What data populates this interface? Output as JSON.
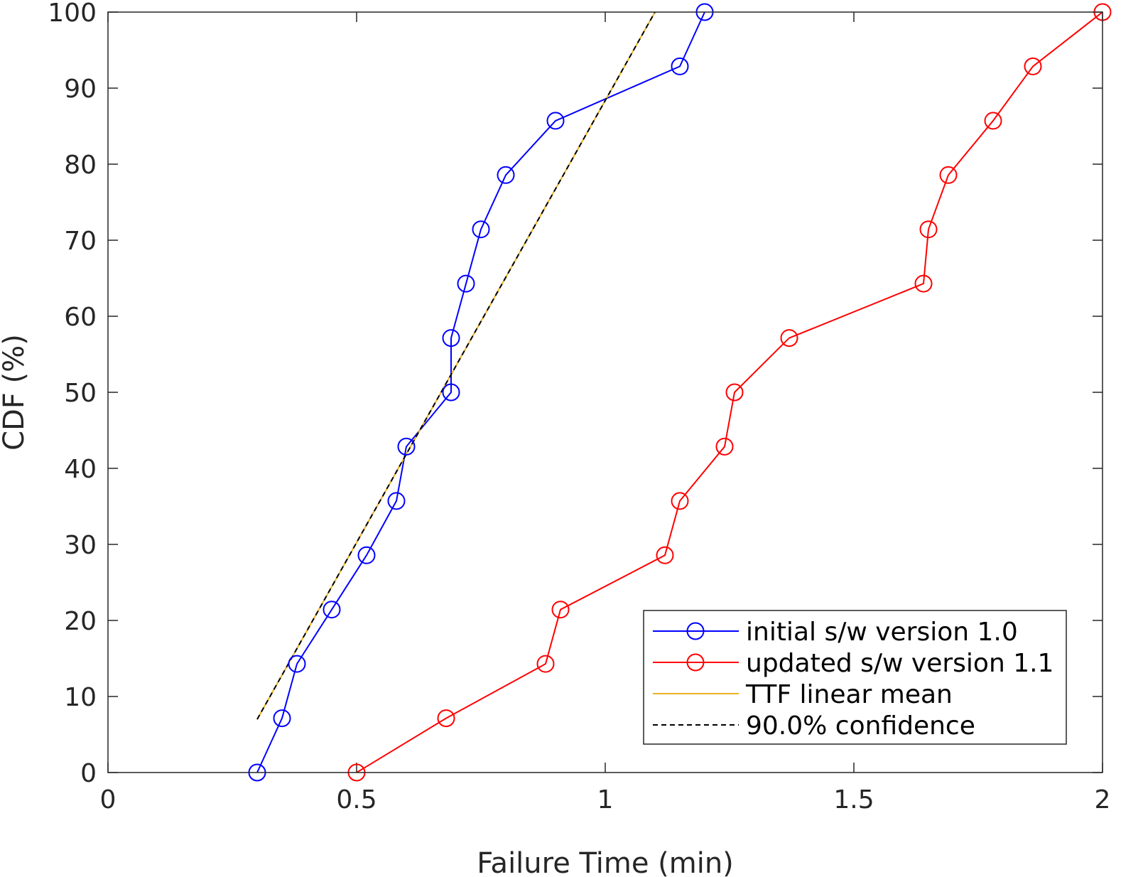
{
  "chart_data": {
    "type": "line",
    "xlabel": "Failure Time (min)",
    "ylabel": "CDF (%)",
    "xlim": [
      0,
      2
    ],
    "ylim": [
      0,
      100
    ],
    "xticks": [
      0,
      0.5,
      1,
      1.5,
      2
    ],
    "yticks": [
      0,
      10,
      20,
      30,
      40,
      50,
      60,
      70,
      80,
      90,
      100
    ],
    "xtick_labels": [
      "0",
      "0.5",
      "1",
      "1.5",
      "2"
    ],
    "ytick_labels": [
      "0",
      "10",
      "20",
      "30",
      "40",
      "50",
      "60",
      "70",
      "80",
      "90",
      "100"
    ],
    "grid": false,
    "legend_position": "bottom-right",
    "series": [
      {
        "name": "initial s/w version 1.0",
        "color": "#0000ff",
        "marker": "circle",
        "style": "solid",
        "x": [
          0.3,
          0.35,
          0.38,
          0.45,
          0.52,
          0.58,
          0.6,
          0.69,
          0.69,
          0.72,
          0.75,
          0.8,
          0.9,
          1.15,
          1.2
        ],
        "y": [
          0,
          7.14,
          14.29,
          21.43,
          28.57,
          35.71,
          42.86,
          50.0,
          57.14,
          64.29,
          71.43,
          78.57,
          85.71,
          92.86,
          100
        ]
      },
      {
        "name": "updated s/w version 1.1",
        "color": "#ff0000",
        "marker": "circle",
        "style": "solid",
        "x": [
          0.5,
          0.68,
          0.88,
          0.91,
          1.12,
          1.15,
          1.24,
          1.26,
          1.37,
          1.64,
          1.65,
          1.69,
          1.78,
          1.86,
          2.0
        ],
        "y": [
          0,
          7.14,
          14.29,
          21.43,
          28.57,
          35.71,
          42.86,
          50.0,
          57.14,
          64.29,
          71.43,
          78.57,
          85.71,
          92.86,
          100
        ]
      },
      {
        "name": "TTF linear mean",
        "color": "#edb120",
        "marker": "none",
        "style": "solid",
        "x": [
          0.3,
          1.1
        ],
        "y": [
          7.0,
          100
        ]
      },
      {
        "name": "90.0% confidence",
        "color": "#000000",
        "marker": "none",
        "style": "dashed",
        "x": [
          0.3,
          1.1
        ],
        "y": [
          7.0,
          100
        ]
      }
    ]
  }
}
